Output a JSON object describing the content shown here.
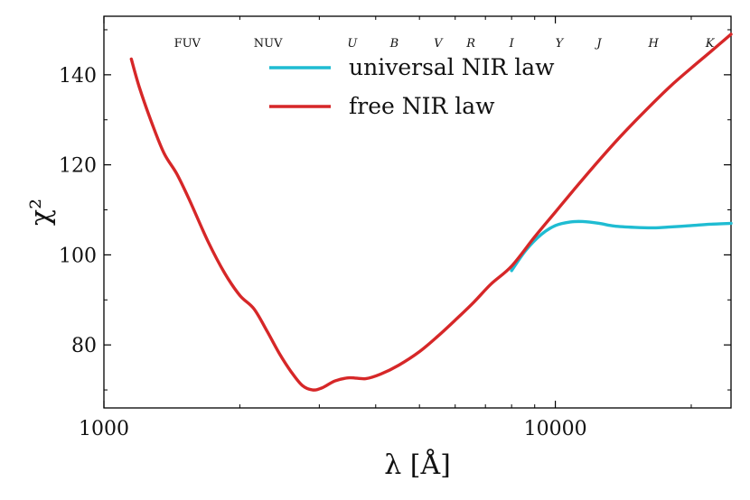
{
  "chart_data": {
    "type": "line",
    "title": "",
    "xlabel": "λ [Å]",
    "ylabel": "χ²",
    "xscale": "log",
    "xlim": [
      1000,
      24500
    ],
    "ylim": [
      66,
      153
    ],
    "xticks": [
      1000,
      10000
    ],
    "xtick_labels": [
      "1000",
      "10000"
    ],
    "yticks": [
      80,
      100,
      120,
      140
    ],
    "ytick_labels": [
      "80",
      "100",
      "120",
      "140"
    ],
    "legend_position": "top-center",
    "band_labels": [
      {
        "text": "FUV",
        "wavelength": 1530,
        "italic": false
      },
      {
        "text": "NUV",
        "wavelength": 2310,
        "italic": false
      },
      {
        "text": "U",
        "wavelength": 3550,
        "italic": true
      },
      {
        "text": "B",
        "wavelength": 4400,
        "italic": true
      },
      {
        "text": "V",
        "wavelength": 5500,
        "italic": true
      },
      {
        "text": "R",
        "wavelength": 6500,
        "italic": true
      },
      {
        "text": "I",
        "wavelength": 8000,
        "italic": true
      },
      {
        "text": "Y",
        "wavelength": 10200,
        "italic": true
      },
      {
        "text": "J",
        "wavelength": 12500,
        "italic": true
      },
      {
        "text": "H",
        "wavelength": 16500,
        "italic": true
      },
      {
        "text": "K",
        "wavelength": 22000,
        "italic": true
      }
    ],
    "series": [
      {
        "name": "universal NIR law",
        "color": "#1fbcd2",
        "points": [
          [
            8000,
            96.5
          ],
          [
            8600,
            101
          ],
          [
            9300,
            104.5
          ],
          [
            10000,
            106.5
          ],
          [
            10800,
            107.3
          ],
          [
            11500,
            107.4
          ],
          [
            12500,
            107
          ],
          [
            13500,
            106.4
          ],
          [
            15000,
            106.1
          ],
          [
            16500,
            106
          ],
          [
            18000,
            106.2
          ],
          [
            20000,
            106.5
          ],
          [
            22000,
            106.8
          ],
          [
            24500,
            107
          ]
        ]
      },
      {
        "name": "free NIR law",
        "color": "#d62728",
        "points": [
          [
            1150,
            143.5
          ],
          [
            1200,
            137
          ],
          [
            1280,
            129
          ],
          [
            1360,
            122.5
          ],
          [
            1450,
            118
          ],
          [
            1550,
            112
          ],
          [
            1700,
            103
          ],
          [
            1850,
            96
          ],
          [
            2000,
            91
          ],
          [
            2150,
            88
          ],
          [
            2300,
            83
          ],
          [
            2450,
            78
          ],
          [
            2600,
            74
          ],
          [
            2750,
            71
          ],
          [
            2900,
            70
          ],
          [
            3050,
            70.5
          ],
          [
            3250,
            72
          ],
          [
            3500,
            72.7
          ],
          [
            3800,
            72.5
          ],
          [
            4100,
            73.5
          ],
          [
            4500,
            75.5
          ],
          [
            5000,
            78.5
          ],
          [
            5500,
            82
          ],
          [
            6000,
            85.5
          ],
          [
            6600,
            89.5
          ],
          [
            7200,
            93.5
          ],
          [
            8000,
            97.5
          ],
          [
            9000,
            104
          ],
          [
            10000,
            109.5
          ],
          [
            11000,
            114.5
          ],
          [
            12500,
            121
          ],
          [
            14000,
            126.5
          ],
          [
            16000,
            132.5
          ],
          [
            18000,
            137.5
          ],
          [
            20000,
            141.5
          ],
          [
            22000,
            145
          ],
          [
            24500,
            149
          ]
        ]
      }
    ]
  }
}
